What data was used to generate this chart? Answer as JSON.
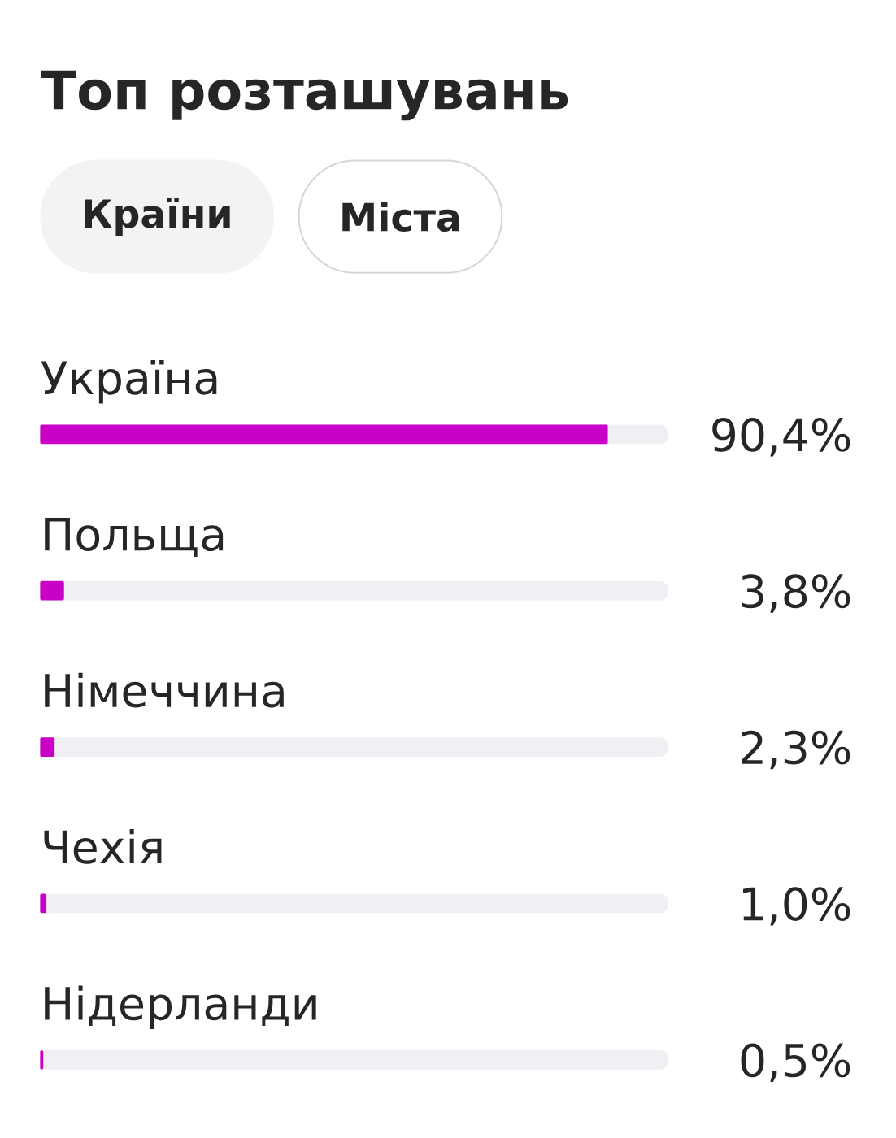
{
  "chart_data": {
    "type": "bar",
    "orientation": "horizontal",
    "title": "Топ розташувань",
    "annotations": [
      "Країни",
      "Міста"
    ],
    "categories": [
      "Україна",
      "Польща",
      "Німеччина",
      "Чехія",
      "Нідерланди"
    ],
    "values": [
      90.4,
      3.8,
      2.3,
      1.0,
      0.5
    ],
    "value_labels": [
      "90,4%",
      "3,8%",
      "2,3%",
      "1,0%",
      "0,5%"
    ],
    "color": "#c800c8",
    "xlim": [
      0,
      100
    ],
    "tick_labels": "y"
  }
}
